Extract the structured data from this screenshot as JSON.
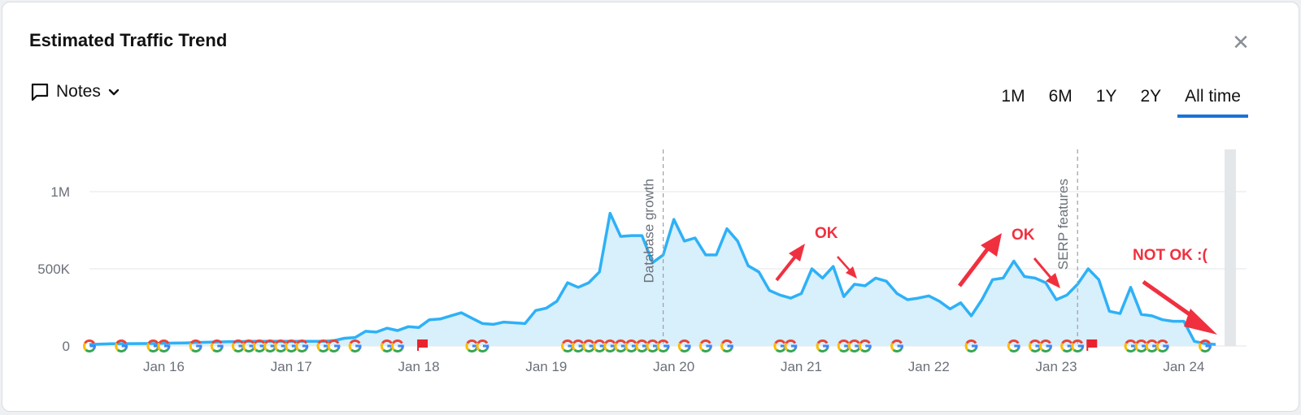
{
  "header": {
    "title": "Estimated Traffic Trend"
  },
  "notes": {
    "label": "Notes",
    "icon": "comment-icon"
  },
  "ranges": [
    {
      "label": "1M",
      "active": false
    },
    {
      "label": "6M",
      "active": false
    },
    {
      "label": "1Y",
      "active": false
    },
    {
      "label": "2Y",
      "active": false
    },
    {
      "label": "All time",
      "active": true
    }
  ],
  "colors": {
    "line": "#2eb1f7",
    "area": "#d8effc",
    "grid": "#e3e5e8",
    "annotation": "#f0303f",
    "tab_underline": "#1a73d9"
  },
  "chart_data": {
    "type": "area",
    "ylim": [
      0,
      1250000
    ],
    "y_ticks": [
      0,
      500000,
      1000000
    ],
    "y_tick_labels": [
      "0",
      "500K",
      "1M"
    ],
    "x_ticks": [
      "2016-01",
      "2017-01",
      "2018-01",
      "2019-01",
      "2020-01",
      "2021-01",
      "2022-01",
      "2023-01",
      "2024-01"
    ],
    "x_tick_labels": [
      "Jan 16",
      "Jan 17",
      "Jan 18",
      "Jan 19",
      "Jan 20",
      "Jan 21",
      "Jan 22",
      "Jan 23",
      "Jan 24"
    ],
    "series": [
      {
        "x": [
          "2015-06",
          "2015-07",
          "2015-08",
          "2015-09",
          "2015-10",
          "2015-11",
          "2015-12",
          "2016-01",
          "2016-02",
          "2016-03",
          "2016-04",
          "2016-05",
          "2016-06",
          "2016-07",
          "2016-08",
          "2016-09",
          "2016-10",
          "2016-11",
          "2016-12",
          "2017-01",
          "2017-02",
          "2017-03",
          "2017-04",
          "2017-05",
          "2017-06",
          "2017-07",
          "2017-08",
          "2017-09",
          "2017-10",
          "2017-11",
          "2017-12",
          "2018-01",
          "2018-02",
          "2018-03",
          "2018-04",
          "2018-05",
          "2018-06",
          "2018-07",
          "2018-08",
          "2018-09",
          "2018-10",
          "2018-11",
          "2018-12",
          "2019-01",
          "2019-02",
          "2019-03",
          "2019-04",
          "2019-05",
          "2019-06",
          "2019-07",
          "2019-08",
          "2019-09",
          "2019-10",
          "2019-11",
          "2019-12",
          "2020-01",
          "2020-02",
          "2020-03",
          "2020-04",
          "2020-05",
          "2020-06",
          "2020-07",
          "2020-08",
          "2020-09",
          "2020-10",
          "2020-11",
          "2020-12",
          "2021-01",
          "2021-02",
          "2021-03",
          "2021-04",
          "2021-05",
          "2021-06",
          "2021-07",
          "2021-08",
          "2021-09",
          "2021-10",
          "2021-11",
          "2021-12",
          "2022-01",
          "2022-02",
          "2022-03",
          "2022-04",
          "2022-05",
          "2022-06",
          "2022-07",
          "2022-08",
          "2022-09",
          "2022-10",
          "2022-11",
          "2022-12",
          "2023-01",
          "2023-02",
          "2023-03",
          "2023-04",
          "2023-05",
          "2023-06",
          "2023-07",
          "2023-08",
          "2023-09",
          "2023-10",
          "2023-11",
          "2023-12",
          "2024-01",
          "2024-02",
          "2024-03",
          "2024-04"
        ],
        "values": [
          10000,
          12000,
          14000,
          15000,
          15000,
          16000,
          16000,
          18000,
          19000,
          20000,
          22000,
          24000,
          26000,
          28000,
          28000,
          30000,
          30000,
          30000,
          30000,
          30000,
          30000,
          30000,
          30000,
          35000,
          50000,
          55000,
          95000,
          90000,
          115000,
          100000,
          125000,
          120000,
          170000,
          175000,
          195000,
          215000,
          180000,
          145000,
          140000,
          155000,
          150000,
          145000,
          230000,
          245000,
          290000,
          410000,
          380000,
          410000,
          480000,
          860000,
          710000,
          715000,
          715000,
          540000,
          590000,
          820000,
          680000,
          700000,
          590000,
          590000,
          760000,
          680000,
          520000,
          480000,
          360000,
          330000,
          310000,
          340000,
          500000,
          440000,
          515000,
          320000,
          400000,
          390000,
          440000,
          420000,
          340000,
          300000,
          310000,
          325000,
          290000,
          240000,
          280000,
          195000,
          300000,
          430000,
          440000,
          550000,
          450000,
          440000,
          410000,
          300000,
          330000,
          400000,
          500000,
          430000,
          225000,
          210000,
          380000,
          205000,
          195000,
          170000,
          160000,
          160000,
          30000,
          15000,
          10000
        ]
      }
    ],
    "vertical_markers": [
      {
        "x": "2019-12",
        "label": "Database growth"
      },
      {
        "x": "2023-03",
        "label": "SERP features"
      }
    ],
    "annotations": [
      {
        "text": "OK"
      },
      {
        "text": "OK"
      },
      {
        "text": "NOT OK :("
      }
    ],
    "event_icons": {
      "google": [
        "2015-06",
        "2015-09",
        "2015-12",
        "2016-01",
        "2016-04",
        "2016-06",
        "2016-08",
        "2016-09",
        "2016-10",
        "2016-11",
        "2016-12",
        "2017-01",
        "2017-02",
        "2017-04",
        "2017-05",
        "2017-07",
        "2017-10",
        "2017-11",
        "2018-06",
        "2018-07",
        "2019-03",
        "2019-04",
        "2019-05",
        "2019-06",
        "2019-07",
        "2019-08",
        "2019-09",
        "2019-10",
        "2019-11",
        "2019-12",
        "2020-02",
        "2020-04",
        "2020-06",
        "2020-11",
        "2020-12",
        "2021-03",
        "2021-05",
        "2021-06",
        "2021-07",
        "2021-10",
        "2022-05",
        "2022-09",
        "2022-11",
        "2022-12",
        "2023-02",
        "2023-03",
        "2023-08",
        "2023-09",
        "2023-10",
        "2023-11",
        "2024-03"
      ],
      "flag": [
        "2018-01",
        "2023-04"
      ]
    }
  }
}
